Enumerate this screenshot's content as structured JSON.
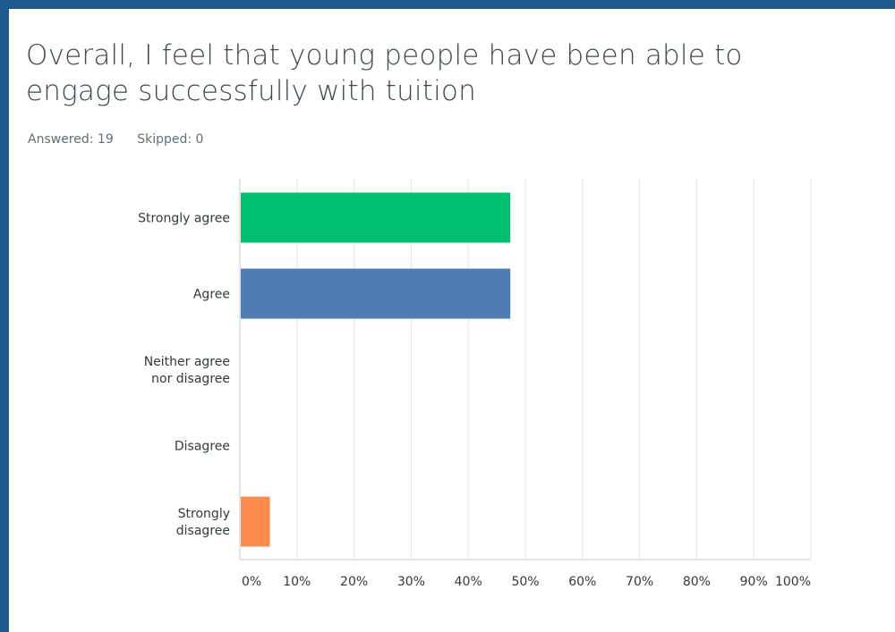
{
  "title": "Overall, I feel that young people have been able to engage successfully with tuition",
  "stats": {
    "answered_label": "Answered: 19",
    "skipped_label": "Skipped: 0"
  },
  "colors": {
    "frame": "#1f5a8f",
    "grid": "#e3e6e8",
    "axis": "#c8ccce"
  },
  "chart_data": {
    "type": "bar",
    "orientation": "horizontal",
    "categories": [
      [
        "Strongly agree"
      ],
      [
        "Agree"
      ],
      [
        "Neither agree",
        "nor disagree"
      ],
      [
        "Disagree"
      ],
      [
        "Strongly",
        "disagree"
      ]
    ],
    "values": [
      47.37,
      47.37,
      0,
      0,
      5.26
    ],
    "bar_colors": [
      "#00bf6f",
      "#507cb6",
      "#f9be00",
      "#6bc8cd",
      "#ff8b4f"
    ],
    "xlim": [
      0,
      100
    ],
    "xticks": [
      "0%",
      "10%",
      "20%",
      "30%",
      "40%",
      "50%",
      "60%",
      "70%",
      "80%",
      "90%",
      "100%"
    ],
    "grid": true,
    "legend": "none"
  }
}
